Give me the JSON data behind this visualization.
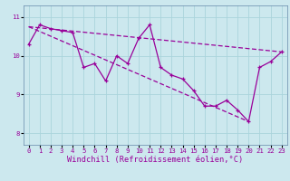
{
  "xlabel": "Windchill (Refroidissement éolien,°C)",
  "bg_color": "#cce8ee",
  "line_color": "#990099",
  "xlim": [
    -0.5,
    23.5
  ],
  "ylim": [
    7.7,
    11.3
  ],
  "xticks": [
    0,
    1,
    2,
    3,
    4,
    5,
    6,
    7,
    8,
    9,
    10,
    11,
    12,
    13,
    14,
    15,
    16,
    17,
    18,
    19,
    20,
    21,
    22,
    23
  ],
  "yticks": [
    8,
    9,
    10,
    11
  ],
  "series1_x": [
    0,
    1,
    2,
    3,
    4,
    5,
    6,
    7,
    8,
    9,
    10,
    11,
    12,
    13,
    14,
    15,
    16,
    17,
    18,
    19,
    20,
    21,
    22,
    23
  ],
  "series1_y": [
    10.3,
    10.8,
    10.7,
    10.65,
    10.6,
    9.7,
    9.8,
    9.35,
    10.0,
    9.8,
    10.45,
    10.8,
    9.7,
    9.5,
    9.4,
    9.1,
    8.7,
    8.7,
    8.85,
    8.6,
    8.3,
    9.7,
    9.85,
    10.1
  ],
  "series2_x": [
    0,
    23
  ],
  "series2_y": [
    10.75,
    10.1
  ],
  "series3_x": [
    0,
    20
  ],
  "series3_y": [
    10.75,
    8.3
  ],
  "grid_color": "#aad4dc",
  "tick_fontsize": 5.2,
  "xlabel_fontsize": 6.2,
  "linewidth": 0.9,
  "markersize": 3.5
}
